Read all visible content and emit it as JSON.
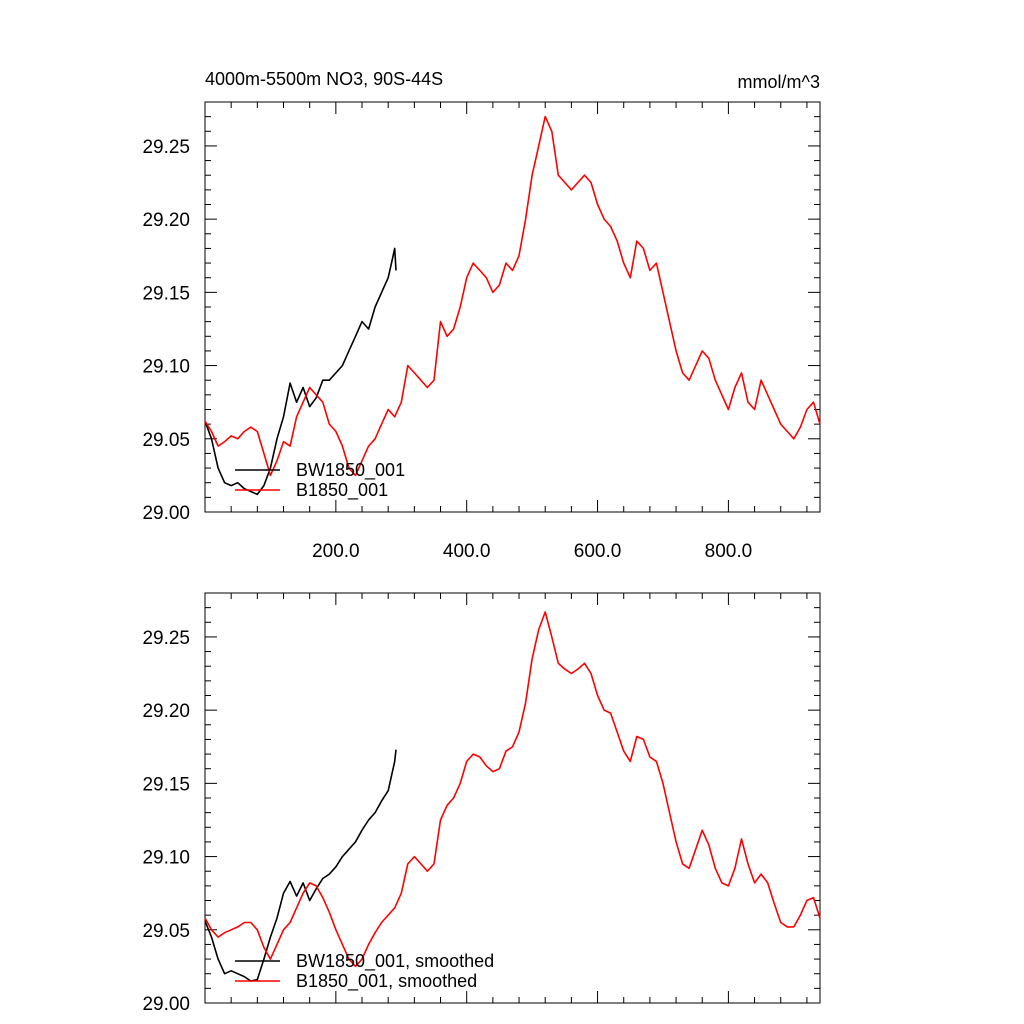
{
  "header": {
    "title": "4000m-5500m NO3, 90S-44S",
    "units": "mmol/m^3"
  },
  "chart_data": [
    {
      "type": "line",
      "title": "4000m-5500m NO3, 90S-44S",
      "units": "mmol/m^3",
      "xlabel": "",
      "ylabel": "",
      "xlim": [
        0,
        940
      ],
      "ylim": [
        29.0,
        29.28
      ],
      "xticks": [
        200,
        400,
        600,
        800
      ],
      "xtick_labels": [
        "200.0",
        "400.0",
        "600.0",
        "800.0"
      ],
      "yticks": [
        29.0,
        29.05,
        29.1,
        29.15,
        29.2,
        29.25
      ],
      "ytick_labels": [
        "29.00",
        "29.05",
        "29.10",
        "29.15",
        "29.20",
        "29.25"
      ],
      "legend_position": "bottom-left",
      "series": [
        {
          "name": "BW1850_001",
          "color": "#000000",
          "x": [
            0,
            10,
            20,
            30,
            40,
            50,
            60,
            70,
            80,
            90,
            100,
            110,
            120,
            130,
            140,
            150,
            160,
            170,
            180,
            190,
            200,
            210,
            220,
            230,
            240,
            250,
            260,
            270,
            280,
            285,
            290,
            292
          ],
          "y": [
            29.062,
            29.05,
            29.03,
            29.02,
            29.018,
            29.02,
            29.016,
            29.014,
            29.012,
            29.018,
            29.03,
            29.05,
            29.065,
            29.088,
            29.075,
            29.085,
            29.072,
            29.078,
            29.09,
            29.09,
            29.095,
            29.1,
            29.11,
            29.12,
            29.13,
            29.125,
            29.14,
            29.15,
            29.16,
            29.17,
            29.18,
            29.165
          ]
        },
        {
          "name": "B1850_001",
          "color": "#ff0000",
          "x": [
            0,
            10,
            20,
            30,
            40,
            50,
            60,
            70,
            80,
            90,
            100,
            110,
            120,
            130,
            140,
            150,
            160,
            170,
            180,
            190,
            200,
            210,
            220,
            230,
            240,
            250,
            260,
            270,
            280,
            290,
            300,
            310,
            320,
            330,
            340,
            350,
            360,
            370,
            380,
            390,
            400,
            410,
            420,
            430,
            440,
            450,
            460,
            470,
            480,
            490,
            500,
            510,
            520,
            530,
            540,
            550,
            560,
            570,
            580,
            590,
            600,
            610,
            620,
            630,
            640,
            650,
            660,
            670,
            680,
            690,
            700,
            710,
            720,
            730,
            740,
            750,
            760,
            770,
            780,
            790,
            800,
            810,
            820,
            830,
            840,
            850,
            860,
            870,
            880,
            890,
            900,
            910,
            920,
            930,
            940
          ],
          "y": [
            29.062,
            29.055,
            29.045,
            29.048,
            29.052,
            29.05,
            29.055,
            29.058,
            29.055,
            29.04,
            29.025,
            29.035,
            29.048,
            29.045,
            29.065,
            29.075,
            29.085,
            29.08,
            29.075,
            29.06,
            29.055,
            29.045,
            29.03,
            29.025,
            29.035,
            29.045,
            29.05,
            29.06,
            29.07,
            29.065,
            29.075,
            29.1,
            29.095,
            29.09,
            29.085,
            29.09,
            29.13,
            29.12,
            29.125,
            29.14,
            29.16,
            29.17,
            29.165,
            29.16,
            29.15,
            29.155,
            29.17,
            29.165,
            29.175,
            29.2,
            29.23,
            29.25,
            29.27,
            29.26,
            29.23,
            29.225,
            29.22,
            29.225,
            29.23,
            29.225,
            29.21,
            29.2,
            29.195,
            29.185,
            29.17,
            29.16,
            29.185,
            29.18,
            29.165,
            29.17,
            29.15,
            29.13,
            29.11,
            29.095,
            29.09,
            29.1,
            29.11,
            29.105,
            29.09,
            29.08,
            29.07,
            29.085,
            29.095,
            29.075,
            29.07,
            29.09,
            29.08,
            29.07,
            29.06,
            29.055,
            29.05,
            29.058,
            29.07,
            29.075,
            29.06
          ]
        }
      ]
    },
    {
      "type": "line",
      "title": "",
      "xlabel": "",
      "ylabel": "",
      "xlim": [
        0,
        940
      ],
      "ylim": [
        29.0,
        29.28
      ],
      "yticks": [
        29.0,
        29.05,
        29.1,
        29.15,
        29.2,
        29.25
      ],
      "ytick_labels": [
        "29.00",
        "29.05",
        "29.10",
        "29.15",
        "29.20",
        "29.25"
      ],
      "legend_position": "bottom-left",
      "series": [
        {
          "name": "BW1850_001, smoothed",
          "color": "#000000",
          "x": [
            0,
            10,
            20,
            30,
            40,
            50,
            60,
            70,
            80,
            90,
            100,
            110,
            120,
            130,
            140,
            150,
            160,
            170,
            180,
            190,
            200,
            210,
            220,
            230,
            240,
            250,
            260,
            270,
            280,
            290,
            292
          ],
          "y": [
            29.056,
            29.045,
            29.03,
            29.02,
            29.022,
            29.02,
            29.018,
            29.015,
            29.016,
            29.03,
            29.045,
            29.058,
            29.075,
            29.083,
            29.073,
            29.082,
            29.07,
            29.078,
            29.085,
            29.088,
            29.093,
            29.1,
            29.105,
            29.11,
            29.118,
            29.125,
            29.13,
            29.138,
            29.145,
            29.165,
            29.173
          ]
        },
        {
          "name": "B1850_001, smoothed",
          "color": "#ff0000",
          "x": [
            0,
            10,
            20,
            30,
            40,
            50,
            60,
            70,
            80,
            90,
            100,
            110,
            120,
            130,
            140,
            150,
            160,
            170,
            180,
            190,
            200,
            210,
            220,
            230,
            240,
            250,
            260,
            270,
            280,
            290,
            300,
            310,
            320,
            330,
            340,
            350,
            360,
            370,
            380,
            390,
            400,
            410,
            420,
            430,
            440,
            450,
            460,
            470,
            480,
            490,
            500,
            510,
            520,
            530,
            540,
            550,
            560,
            570,
            580,
            590,
            600,
            610,
            620,
            630,
            640,
            650,
            660,
            670,
            680,
            690,
            700,
            710,
            720,
            730,
            740,
            750,
            760,
            770,
            780,
            790,
            800,
            810,
            820,
            830,
            840,
            850,
            860,
            870,
            880,
            890,
            900,
            910,
            920,
            930,
            940
          ],
          "y": [
            29.058,
            29.05,
            29.045,
            29.048,
            29.05,
            29.052,
            29.055,
            29.055,
            29.05,
            29.038,
            29.03,
            29.04,
            29.05,
            29.055,
            29.065,
            29.075,
            29.082,
            29.08,
            29.072,
            29.062,
            29.05,
            29.04,
            29.03,
            29.025,
            29.03,
            29.04,
            29.048,
            29.055,
            29.06,
            29.065,
            29.075,
            29.095,
            29.1,
            29.095,
            29.09,
            29.095,
            29.125,
            29.135,
            29.14,
            29.15,
            29.165,
            29.17,
            29.168,
            29.162,
            29.158,
            29.16,
            29.172,
            29.175,
            29.185,
            29.205,
            29.235,
            29.255,
            29.267,
            29.25,
            29.232,
            29.228,
            29.225,
            29.228,
            29.232,
            29.225,
            29.21,
            29.2,
            29.198,
            29.185,
            29.172,
            29.165,
            29.182,
            29.18,
            29.168,
            29.165,
            29.15,
            29.13,
            29.11,
            29.095,
            29.092,
            29.105,
            29.118,
            29.108,
            29.092,
            29.082,
            29.08,
            29.092,
            29.112,
            29.095,
            29.082,
            29.088,
            29.082,
            29.068,
            29.055,
            29.052,
            29.052,
            29.06,
            29.07,
            29.072,
            29.058
          ]
        }
      ]
    }
  ]
}
